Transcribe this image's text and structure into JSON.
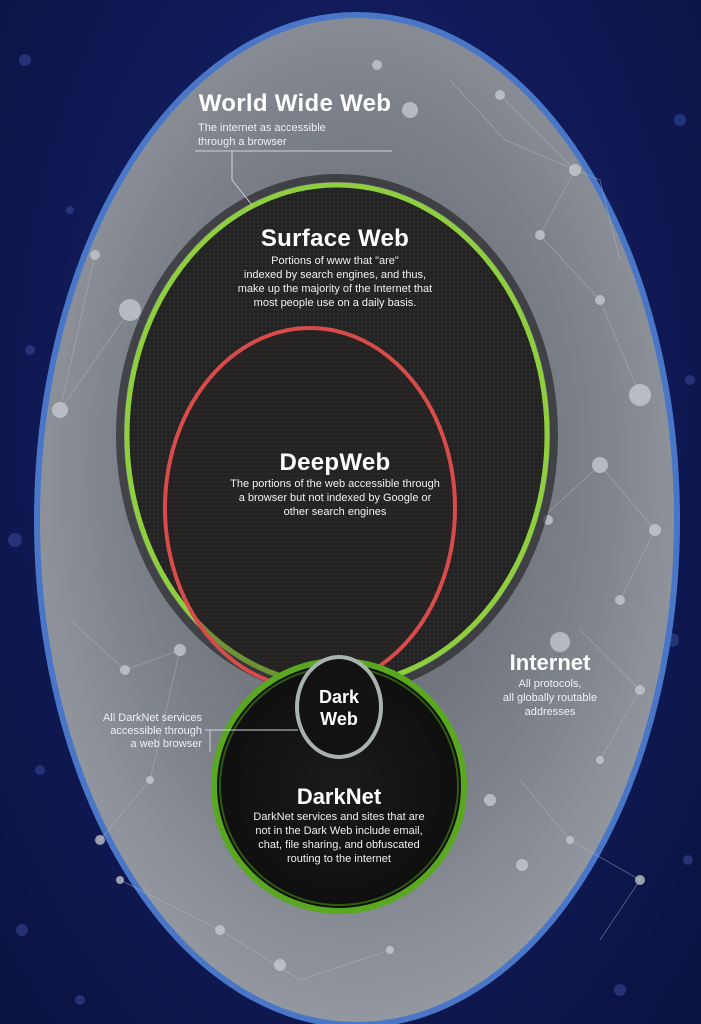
{
  "www": {
    "title": "World Wide Web",
    "desc_line1": "The internet as accessible",
    "desc_line2": "through a browser"
  },
  "surface": {
    "title": "Surface Web",
    "desc_line1": "Portions of www that \"are\"",
    "desc_line2": "indexed by search engines, and thus,",
    "desc_line3": "make up the majority of the Internet that",
    "desc_line4": "most people use on a daily basis."
  },
  "deep": {
    "title": "DeepWeb",
    "desc_line1": "The portions of the web accessible through",
    "desc_line2": "a browser but not indexed by Google or",
    "desc_line3": "other search engines"
  },
  "internet": {
    "title": "Internet",
    "desc_line1": "All protocols,",
    "desc_line2": "all globally routable",
    "desc_line3": "addresses"
  },
  "darkweb": {
    "title_line1": "Dark",
    "title_line2": "Web",
    "callout_line1": "All DarkNet services",
    "callout_line2": "accessible through",
    "callout_line3": "a web browser"
  },
  "darknet": {
    "title": "DarkNet",
    "desc_line1": "DarkNet services and sites that are",
    "desc_line2": "not in the Dark Web include email,",
    "desc_line3": "chat, file sharing, and obfuscated",
    "desc_line4": "routing to the internet"
  },
  "colors": {
    "background": "#121c5c",
    "internet_ring": "#4a76c8",
    "internet_fill": "#8a8e98",
    "surface_ring": "#8fcf3e",
    "deep_ring": "#d84b4b",
    "darknet_ring": "#5aa820",
    "darkweb_ring": "#a9b3ad"
  }
}
